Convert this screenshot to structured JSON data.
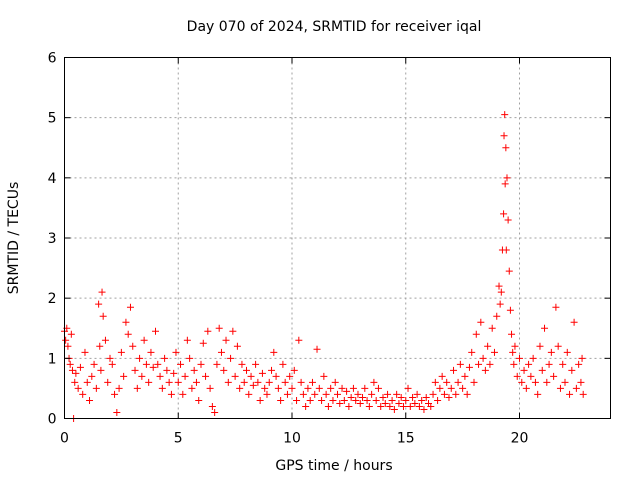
{
  "chart_data": {
    "type": "scatter",
    "title": "Day 070 of 2024, SRMTID for receiver iqal",
    "xlabel": "GPS time / hours",
    "ylabel": "SRMTID / TECUs",
    "xlim": [
      0,
      24
    ],
    "ylim": [
      0,
      6
    ],
    "xticks": [
      "0",
      "5",
      "10",
      "15",
      "20"
    ],
    "yticks": [
      "0",
      "1",
      "2",
      "3",
      "4",
      "5",
      "6"
    ],
    "grid": true,
    "marker": "+",
    "color": "#ff0000",
    "series": [
      {
        "name": "SRMTID",
        "points": [
          [
            0.0,
            1.45
          ],
          [
            0.05,
            1.3
          ],
          [
            0.1,
            1.5
          ],
          [
            0.15,
            1.2
          ],
          [
            0.2,
            1.0
          ],
          [
            0.25,
            0.9
          ],
          [
            0.3,
            1.4
          ],
          [
            0.35,
            0.8
          ],
          [
            0.4,
            0.0
          ],
          [
            0.45,
            0.6
          ],
          [
            0.5,
            0.75
          ],
          [
            0.6,
            0.5
          ],
          [
            0.7,
            0.85
          ],
          [
            0.8,
            0.4
          ],
          [
            0.9,
            1.1
          ],
          [
            1.0,
            0.6
          ],
          [
            1.1,
            0.3
          ],
          [
            1.2,
            0.7
          ],
          [
            1.3,
            0.9
          ],
          [
            1.4,
            0.5
          ],
          [
            1.5,
            1.9
          ],
          [
            1.55,
            1.2
          ],
          [
            1.6,
            0.8
          ],
          [
            1.65,
            2.1
          ],
          [
            1.7,
            1.7
          ],
          [
            1.8,
            1.3
          ],
          [
            1.9,
            0.6
          ],
          [
            2.0,
            1.0
          ],
          [
            2.1,
            0.9
          ],
          [
            2.2,
            0.4
          ],
          [
            2.3,
            0.1
          ],
          [
            2.4,
            0.5
          ],
          [
            2.5,
            1.1
          ],
          [
            2.6,
            0.7
          ],
          [
            2.7,
            1.6
          ],
          [
            2.8,
            1.4
          ],
          [
            2.9,
            1.85
          ],
          [
            3.0,
            1.2
          ],
          [
            3.1,
            0.8
          ],
          [
            3.2,
            0.5
          ],
          [
            3.3,
            1.0
          ],
          [
            3.4,
            0.7
          ],
          [
            3.5,
            1.3
          ],
          [
            3.6,
            0.9
          ],
          [
            3.7,
            0.6
          ],
          [
            3.8,
            1.1
          ],
          [
            3.9,
            0.85
          ],
          [
            4.0,
            1.45
          ],
          [
            4.1,
            0.9
          ],
          [
            4.2,
            0.7
          ],
          [
            4.3,
            0.5
          ],
          [
            4.4,
            1.0
          ],
          [
            4.5,
            0.8
          ],
          [
            4.6,
            0.6
          ],
          [
            4.7,
            0.4
          ],
          [
            4.8,
            0.75
          ],
          [
            4.9,
            1.1
          ],
          [
            5.0,
            0.6
          ],
          [
            5.1,
            0.9
          ],
          [
            5.2,
            0.4
          ],
          [
            5.3,
            0.7
          ],
          [
            5.4,
            1.3
          ],
          [
            5.5,
            1.0
          ],
          [
            5.6,
            0.5
          ],
          [
            5.7,
            0.8
          ],
          [
            5.8,
            0.6
          ],
          [
            5.9,
            0.3
          ],
          [
            6.0,
            0.9
          ],
          [
            6.1,
            1.25
          ],
          [
            6.2,
            0.7
          ],
          [
            6.3,
            1.45
          ],
          [
            6.4,
            0.5
          ],
          [
            6.5,
            0.2
          ],
          [
            6.6,
            0.1
          ],
          [
            6.7,
            0.9
          ],
          [
            6.8,
            1.5
          ],
          [
            6.9,
            1.1
          ],
          [
            7.0,
            0.8
          ],
          [
            7.1,
            1.3
          ],
          [
            7.2,
            0.6
          ],
          [
            7.3,
            1.0
          ],
          [
            7.4,
            1.45
          ],
          [
            7.5,
            0.7
          ],
          [
            7.6,
            1.2
          ],
          [
            7.7,
            0.5
          ],
          [
            7.8,
            0.9
          ],
          [
            7.9,
            0.6
          ],
          [
            8.0,
            0.8
          ],
          [
            8.1,
            0.4
          ],
          [
            8.2,
            0.7
          ],
          [
            8.3,
            0.55
          ],
          [
            8.4,
            0.9
          ],
          [
            8.5,
            0.6
          ],
          [
            8.6,
            0.3
          ],
          [
            8.7,
            0.75
          ],
          [
            8.8,
            0.5
          ],
          [
            8.9,
            0.4
          ],
          [
            9.0,
            0.6
          ],
          [
            9.1,
            0.8
          ],
          [
            9.2,
            1.1
          ],
          [
            9.3,
            0.7
          ],
          [
            9.4,
            0.5
          ],
          [
            9.5,
            0.3
          ],
          [
            9.6,
            0.9
          ],
          [
            9.7,
            0.6
          ],
          [
            9.8,
            0.4
          ],
          [
            9.9,
            0.7
          ],
          [
            10.0,
            0.5
          ],
          [
            10.1,
            0.8
          ],
          [
            10.2,
            0.3
          ],
          [
            10.3,
            1.3
          ],
          [
            10.4,
            0.6
          ],
          [
            10.5,
            0.4
          ],
          [
            10.6,
            0.2
          ],
          [
            10.7,
            0.5
          ],
          [
            10.8,
            0.3
          ],
          [
            10.9,
            0.6
          ],
          [
            11.0,
            0.4
          ],
          [
            11.1,
            1.15
          ],
          [
            11.2,
            0.5
          ],
          [
            11.3,
            0.3
          ],
          [
            11.4,
            0.7
          ],
          [
            11.5,
            0.4
          ],
          [
            11.6,
            0.2
          ],
          [
            11.7,
            0.5
          ],
          [
            11.8,
            0.3
          ],
          [
            11.9,
            0.6
          ],
          [
            12.0,
            0.4
          ],
          [
            12.1,
            0.25
          ],
          [
            12.2,
            0.5
          ],
          [
            12.3,
            0.3
          ],
          [
            12.4,
            0.45
          ],
          [
            12.5,
            0.2
          ],
          [
            12.6,
            0.35
          ],
          [
            12.7,
            0.5
          ],
          [
            12.8,
            0.3
          ],
          [
            12.9,
            0.4
          ],
          [
            13.0,
            0.25
          ],
          [
            13.1,
            0.35
          ],
          [
            13.2,
            0.5
          ],
          [
            13.3,
            0.3
          ],
          [
            13.4,
            0.2
          ],
          [
            13.5,
            0.4
          ],
          [
            13.6,
            0.6
          ],
          [
            13.7,
            0.3
          ],
          [
            13.8,
            0.5
          ],
          [
            13.9,
            0.2
          ],
          [
            14.0,
            0.35
          ],
          [
            14.1,
            0.25
          ],
          [
            14.2,
            0.4
          ],
          [
            14.3,
            0.2
          ],
          [
            14.4,
            0.3
          ],
          [
            14.5,
            0.15
          ],
          [
            14.6,
            0.4
          ],
          [
            14.7,
            0.25
          ],
          [
            14.8,
            0.35
          ],
          [
            14.9,
            0.2
          ],
          [
            15.0,
            0.3
          ],
          [
            15.1,
            0.5
          ],
          [
            15.2,
            0.2
          ],
          [
            15.3,
            0.35
          ],
          [
            15.4,
            0.25
          ],
          [
            15.5,
            0.4
          ],
          [
            15.6,
            0.2
          ],
          [
            15.7,
            0.3
          ],
          [
            15.8,
            0.15
          ],
          [
            15.9,
            0.35
          ],
          [
            16.0,
            0.25
          ],
          [
            16.1,
            0.2
          ],
          [
            16.2,
            0.4
          ],
          [
            16.3,
            0.6
          ],
          [
            16.4,
            0.3
          ],
          [
            16.5,
            0.5
          ],
          [
            16.6,
            0.7
          ],
          [
            16.7,
            0.4
          ],
          [
            16.8,
            0.6
          ],
          [
            16.9,
            0.35
          ],
          [
            17.0,
            0.5
          ],
          [
            17.1,
            0.8
          ],
          [
            17.2,
            0.4
          ],
          [
            17.3,
            0.6
          ],
          [
            17.4,
            0.9
          ],
          [
            17.5,
            0.5
          ],
          [
            17.6,
            0.7
          ],
          [
            17.7,
            0.4
          ],
          [
            17.8,
            0.85
          ],
          [
            17.9,
            1.1
          ],
          [
            18.0,
            0.6
          ],
          [
            18.1,
            1.4
          ],
          [
            18.2,
            0.9
          ],
          [
            18.3,
            1.6
          ],
          [
            18.4,
            1.0
          ],
          [
            18.5,
            0.8
          ],
          [
            18.6,
            1.2
          ],
          [
            18.7,
            0.9
          ],
          [
            18.8,
            1.5
          ],
          [
            18.9,
            1.1
          ],
          [
            19.0,
            1.7
          ],
          [
            19.1,
            2.2
          ],
          [
            19.15,
            1.9
          ],
          [
            19.2,
            2.1
          ],
          [
            19.25,
            2.8
          ],
          [
            19.3,
            3.4
          ],
          [
            19.32,
            4.7
          ],
          [
            19.35,
            5.05
          ],
          [
            19.37,
            3.9
          ],
          [
            19.4,
            4.5
          ],
          [
            19.42,
            2.8
          ],
          [
            19.45,
            4.0
          ],
          [
            19.5,
            3.3
          ],
          [
            19.55,
            2.45
          ],
          [
            19.6,
            1.8
          ],
          [
            19.65,
            1.4
          ],
          [
            19.7,
            1.1
          ],
          [
            19.75,
            0.9
          ],
          [
            19.8,
            1.2
          ],
          [
            19.9,
            0.7
          ],
          [
            20.0,
            1.0
          ],
          [
            20.1,
            0.6
          ],
          [
            20.2,
            0.8
          ],
          [
            20.3,
            0.5
          ],
          [
            20.4,
            0.9
          ],
          [
            20.5,
            0.7
          ],
          [
            20.6,
            1.0
          ],
          [
            20.7,
            0.6
          ],
          [
            20.8,
            0.4
          ],
          [
            20.9,
            1.2
          ],
          [
            21.0,
            0.8
          ],
          [
            21.1,
            1.5
          ],
          [
            21.2,
            0.6
          ],
          [
            21.3,
            0.9
          ],
          [
            21.4,
            1.1
          ],
          [
            21.5,
            0.7
          ],
          [
            21.6,
            1.85
          ],
          [
            21.7,
            1.2
          ],
          [
            21.8,
            0.5
          ],
          [
            21.9,
            0.9
          ],
          [
            22.0,
            0.6
          ],
          [
            22.1,
            1.1
          ],
          [
            22.2,
            0.4
          ],
          [
            22.3,
            0.8
          ],
          [
            22.4,
            1.6
          ],
          [
            22.5,
            0.5
          ],
          [
            22.6,
            0.9
          ],
          [
            22.7,
            0.6
          ],
          [
            22.75,
            1.0
          ],
          [
            22.8,
            0.4
          ]
        ]
      }
    ]
  }
}
